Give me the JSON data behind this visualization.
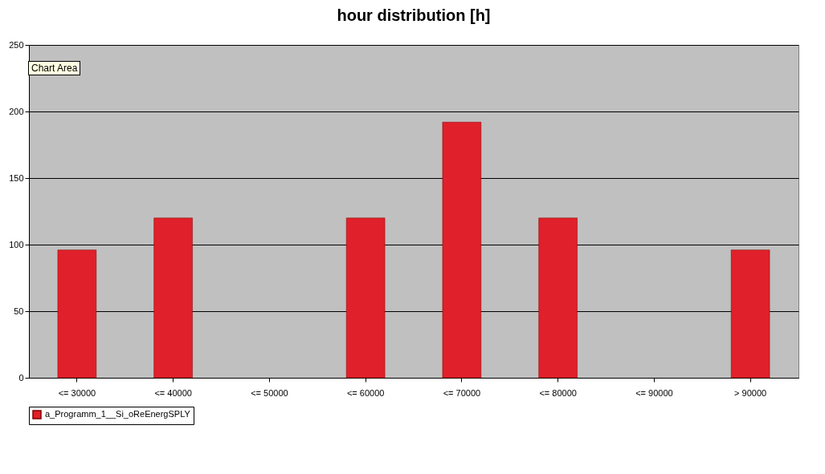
{
  "chart_data": {
    "type": "bar",
    "title": "hour distribution [h]",
    "categories": [
      "<= 30000",
      "<= 40000",
      "<= 50000",
      "<= 60000",
      "<= 70000",
      "<= 80000",
      "<= 90000",
      "> 90000"
    ],
    "series": [
      {
        "name": "a_Programm_1__Si_oReEnergSPLY",
        "color": "#e0202a",
        "values": [
          96,
          120,
          null,
          120,
          192,
          120,
          null,
          96
        ]
      }
    ],
    "ylim": [
      0,
      250
    ],
    "yticks": [
      0,
      50,
      100,
      150,
      200,
      250
    ],
    "grid": "y",
    "legend": "bottom",
    "annotations": [
      "Chart Area"
    ]
  }
}
